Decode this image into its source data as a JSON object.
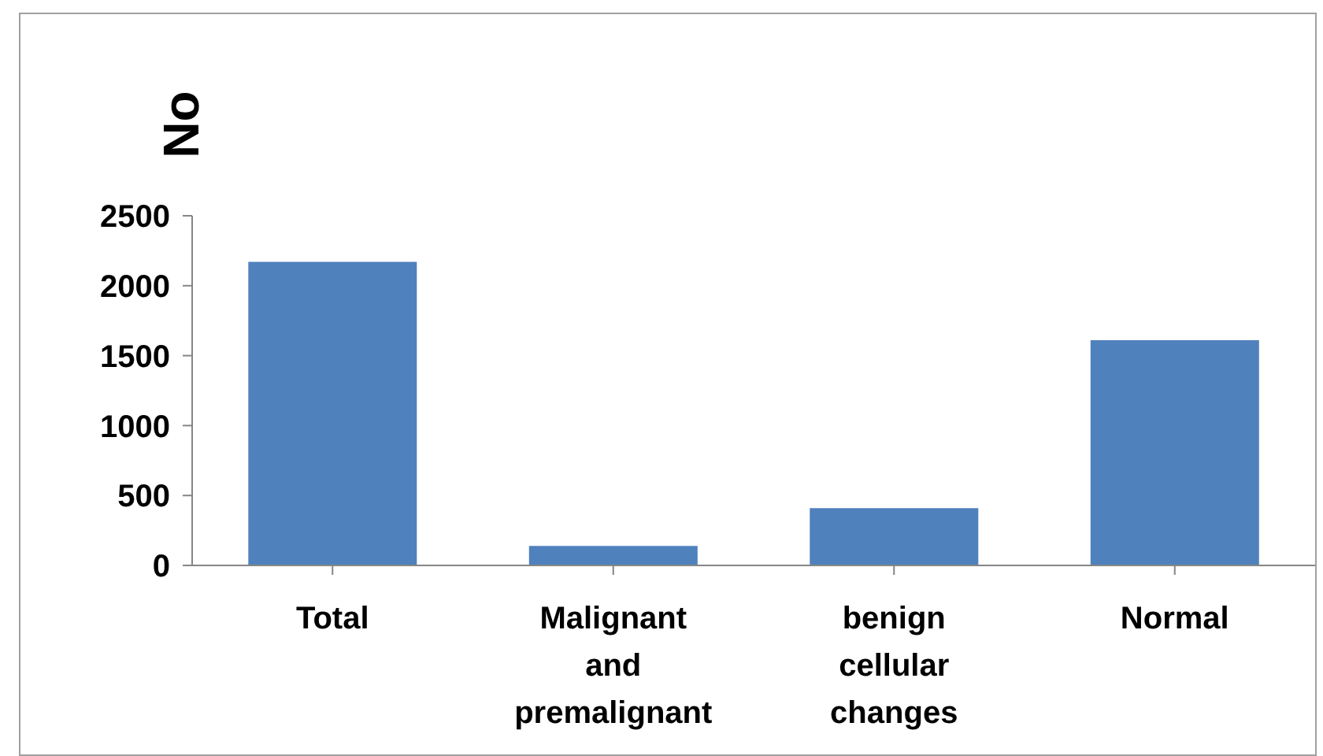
{
  "chart_data": {
    "type": "bar",
    "ylabel": "No",
    "categories": [
      "Total",
      "Malignant and premalignant",
      "benign cellular changes",
      "Normal"
    ],
    "values": [
      2170,
      140,
      410,
      1610
    ],
    "color": "#4f81bd",
    "ylim": [
      0,
      2500
    ],
    "yticks": [
      0,
      500,
      1000,
      1500,
      2000,
      2500
    ],
    "grid": false,
    "legend": false
  }
}
